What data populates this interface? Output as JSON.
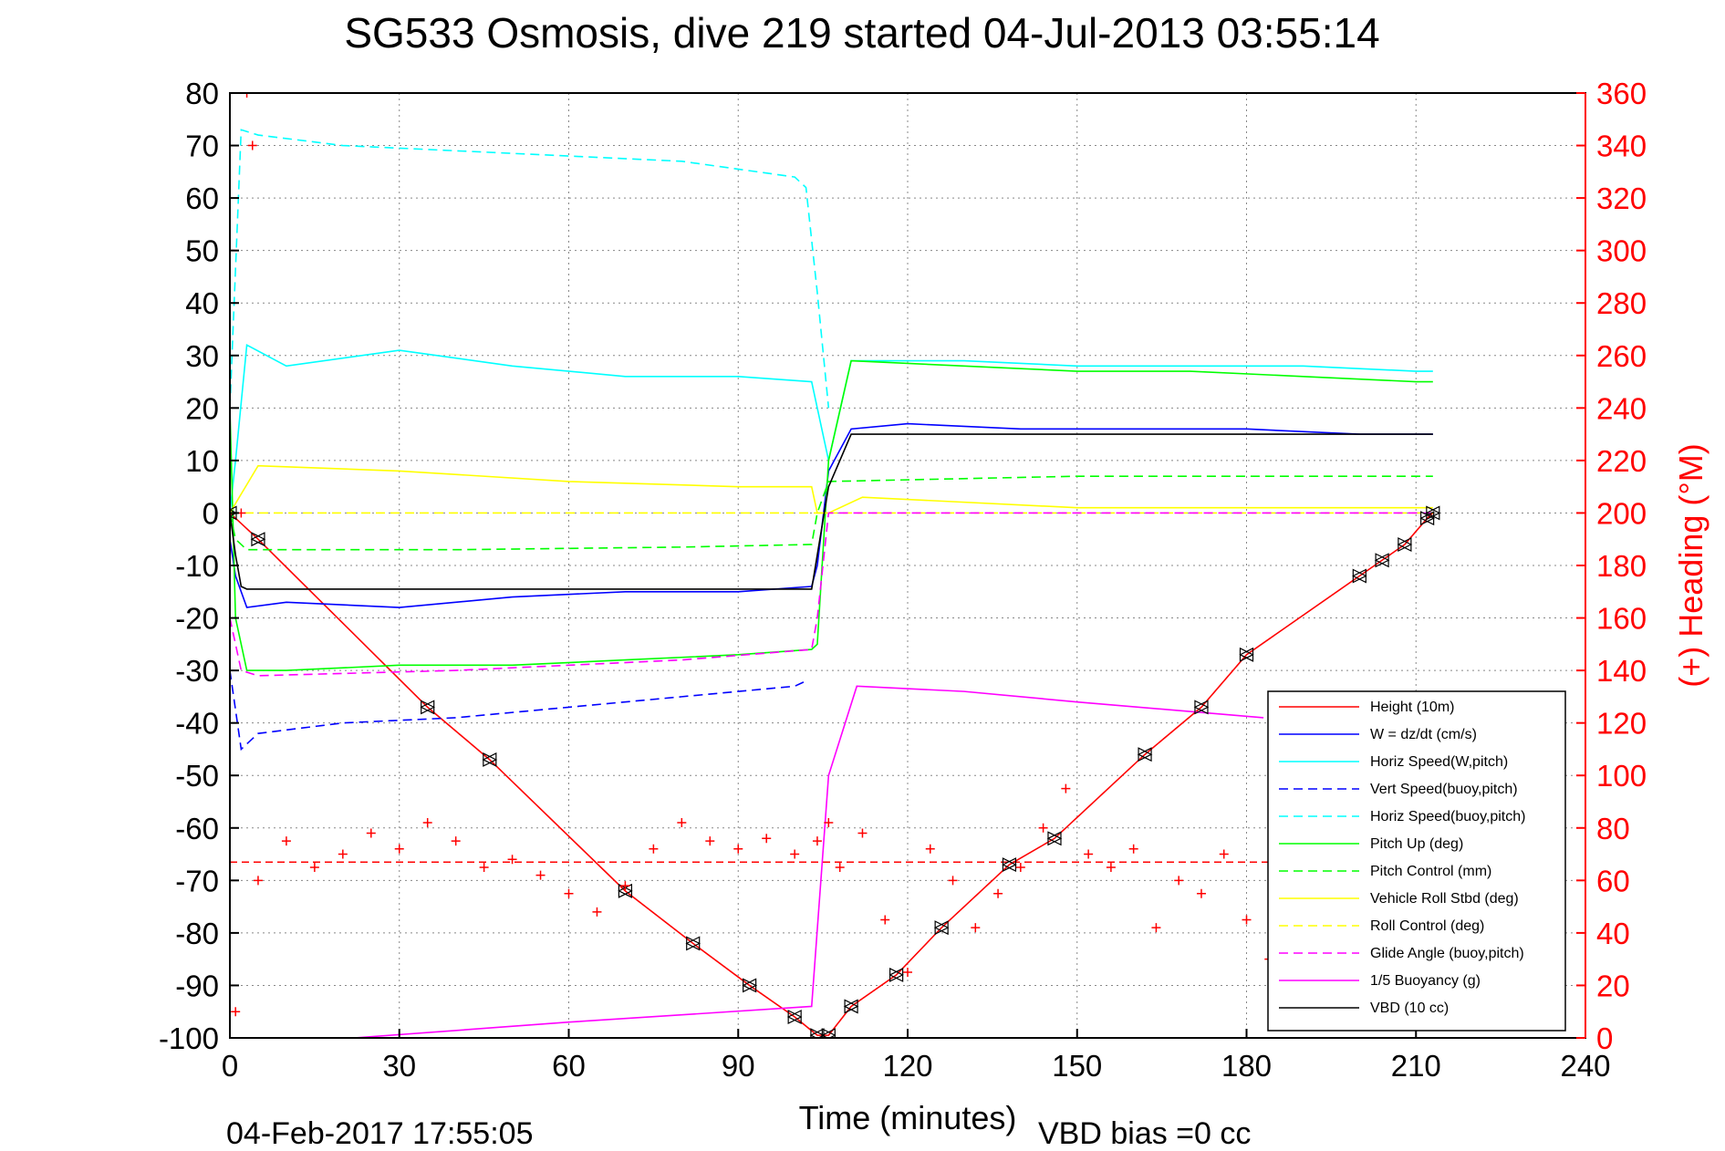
{
  "title": "SG533 Osmosis, dive 219 started 04-Jul-2013 03:55:14",
  "footer": {
    "timestamp": "04-Feb-2017 17:55:05",
    "vbd_bias": "VBD bias =0 cc"
  },
  "chart_data": {
    "type": "line",
    "xlabel": "Time (minutes)",
    "ylabel": "",
    "y2label": "(+) Heading (°M)",
    "xlim": [
      0,
      240
    ],
    "ylim": [
      -100,
      80
    ],
    "y2lim": [
      0,
      360
    ],
    "xticks": [
      "0",
      "30",
      "60",
      "90",
      "120",
      "150",
      "180",
      "210",
      "240"
    ],
    "yticks": [
      "80",
      "70",
      "60",
      "50",
      "40",
      "30",
      "20",
      "10",
      "0",
      "-10",
      "-20",
      "-30",
      "-40",
      "-50",
      "-60",
      "-70",
      "-80",
      "-90",
      "-100"
    ],
    "y2ticks": [
      "360",
      "340",
      "320",
      "300",
      "280",
      "260",
      "240",
      "220",
      "200",
      "180",
      "160",
      "140",
      "120",
      "100",
      "80",
      "60",
      "40",
      "20",
      "0"
    ],
    "grid": true,
    "legend_position": "bottom-right",
    "colors": {
      "height": "#ff0000",
      "w": "#0000ff",
      "horiz_speed": "#00ffff",
      "pitch": "#00ff00",
      "roll": "#ffff00",
      "glide": "#ff00ff",
      "buoyancy": "#ff00ff",
      "vbd": "#000000",
      "heading": "#ff0000"
    },
    "series": [
      {
        "name": "Height (10m)",
        "color": "#ff0000",
        "dash": "solid",
        "x": [
          0,
          5,
          35,
          46,
          70,
          82,
          92,
          100,
          104,
          106,
          110,
          118,
          126,
          138,
          146,
          162,
          172,
          180,
          200,
          204,
          208,
          212,
          213
        ],
        "y": [
          0,
          -5,
          -37,
          -47,
          -72,
          -82,
          -90,
          -96,
          -99.5,
          -99.5,
          -94,
          -88,
          -79,
          -67,
          -62,
          -46,
          -37,
          -27,
          -12,
          -9,
          -6,
          -1,
          0
        ]
      },
      {
        "name": "W = dz/dt (cm/s)",
        "color": "#0000ff",
        "dash": "solid",
        "x": [
          0,
          1,
          3,
          10,
          30,
          50,
          70,
          90,
          103,
          104,
          106,
          110,
          120,
          140,
          160,
          180,
          200,
          212,
          213
        ],
        "y": [
          -5,
          -12,
          -18,
          -17,
          -18,
          -16,
          -15,
          -15,
          -14,
          -10,
          8,
          16,
          17,
          16,
          16,
          16,
          15,
          15,
          15
        ]
      },
      {
        "name": "Horiz Speed(W,pitch)",
        "color": "#00ffff",
        "dash": "solid",
        "x": [
          0,
          1,
          3,
          10,
          30,
          50,
          70,
          90,
          103,
          104,
          106,
          110,
          130,
          150,
          170,
          190,
          210,
          213
        ],
        "y": [
          0,
          10,
          32,
          28,
          31,
          28,
          26,
          26,
          25,
          20,
          10,
          29,
          29,
          28,
          28,
          28,
          27,
          27
        ]
      },
      {
        "name": "Vert Speed(buoy,pitch)",
        "color": "#0000ff",
        "dash": "dashed",
        "x": [
          0,
          2,
          5,
          20,
          40,
          60,
          80,
          100,
          102
        ],
        "y": [
          -30,
          -45,
          -42,
          -40,
          -39,
          -37,
          -35,
          -33,
          -32
        ]
      },
      {
        "name": "Horiz Speed(buoy,pitch)",
        "color": "#00ffff",
        "dash": "dashed",
        "x": [
          0,
          2,
          5,
          20,
          40,
          60,
          80,
          100,
          102,
          104,
          106
        ],
        "y": [
          20,
          73,
          72,
          70,
          69,
          68,
          67,
          64,
          62,
          42,
          20
        ]
      },
      {
        "name": "Pitch Up (deg)",
        "color": "#00ff00",
        "dash": "solid",
        "x": [
          0,
          1,
          3,
          10,
          30,
          50,
          70,
          90,
          103,
          104,
          106,
          110,
          130,
          150,
          170,
          190,
          210,
          213
        ],
        "y": [
          20,
          -20,
          -30,
          -30,
          -29,
          -29,
          -28,
          -27,
          -26,
          -25,
          10,
          29,
          28,
          27,
          27,
          26,
          25,
          25
        ]
      },
      {
        "name": "Pitch Control (mm)",
        "color": "#00ff00",
        "dash": "dashed",
        "x": [
          0,
          1,
          3,
          40,
          80,
          103,
          104,
          106,
          150,
          213
        ],
        "y": [
          0,
          -5,
          -7,
          -7,
          -6.5,
          -6,
          0,
          6,
          7,
          7
        ]
      },
      {
        "name": "Vehicle Roll Stbd (deg)",
        "color": "#ffff00",
        "dash": "solid",
        "x": [
          0,
          5,
          30,
          60,
          90,
          103,
          104,
          106,
          112,
          150,
          200,
          213
        ],
        "y": [
          0,
          9,
          8,
          6,
          5,
          5,
          0,
          0,
          3,
          1,
          1,
          1
        ]
      },
      {
        "name": "Roll Control (deg)",
        "color": "#ffff00",
        "dash": "dashed",
        "x": [
          0,
          5,
          30,
          60,
          90,
          103,
          104,
          213
        ],
        "y": [
          0,
          0,
          0,
          0,
          0,
          0,
          0,
          0
        ]
      },
      {
        "name": "Glide Angle (buoy,pitch)",
        "color": "#ff00ff",
        "dash": "dashed",
        "x": [
          0,
          2,
          5,
          40,
          80,
          103,
          104,
          106,
          213
        ],
        "y": [
          -20,
          -30,
          -31,
          -30,
          -28,
          -26,
          -20,
          0,
          0
        ]
      },
      {
        "name": "1/5 Buoyancy (g)",
        "color": "#ff00ff",
        "dash": "solid",
        "x": [
          22,
          60,
          103,
          106,
          111,
          130,
          150,
          183
        ],
        "y": [
          -100,
          -97,
          -94,
          -50,
          -33,
          -34,
          -36,
          -39
        ]
      },
      {
        "name": "VBD (10 cc)",
        "color": "#000000",
        "dash": "solid",
        "x": [
          0,
          1,
          2,
          3,
          103,
          104,
          106,
          110,
          213
        ],
        "y": [
          0,
          -8,
          -14,
          -14.5,
          -14.5,
          -8,
          5,
          15,
          15
        ]
      }
    ],
    "heading": {
      "name": "(+) Heading",
      "axis": "right",
      "color": "#ff0000",
      "marker": "+",
      "mean": 67,
      "x": [
        0,
        1,
        2,
        3,
        4,
        5,
        10,
        15,
        20,
        25,
        30,
        35,
        40,
        45,
        50,
        55,
        60,
        65,
        70,
        75,
        80,
        85,
        90,
        95,
        100,
        104,
        106,
        108,
        112,
        116,
        120,
        124,
        128,
        132,
        136,
        140,
        144,
        148,
        152,
        156,
        160,
        164,
        168,
        172,
        176,
        180,
        184
      ],
      "y": [
        300,
        10,
        200,
        360,
        340,
        60,
        75,
        65,
        70,
        78,
        72,
        82,
        75,
        65,
        68,
        62,
        55,
        48,
        58,
        72,
        82,
        75,
        72,
        76,
        70,
        75,
        82,
        65,
        78,
        45,
        25,
        72,
        60,
        42,
        55,
        65,
        80,
        95,
        70,
        65,
        72,
        42,
        60,
        55,
        70,
        45,
        30
      ]
    }
  }
}
